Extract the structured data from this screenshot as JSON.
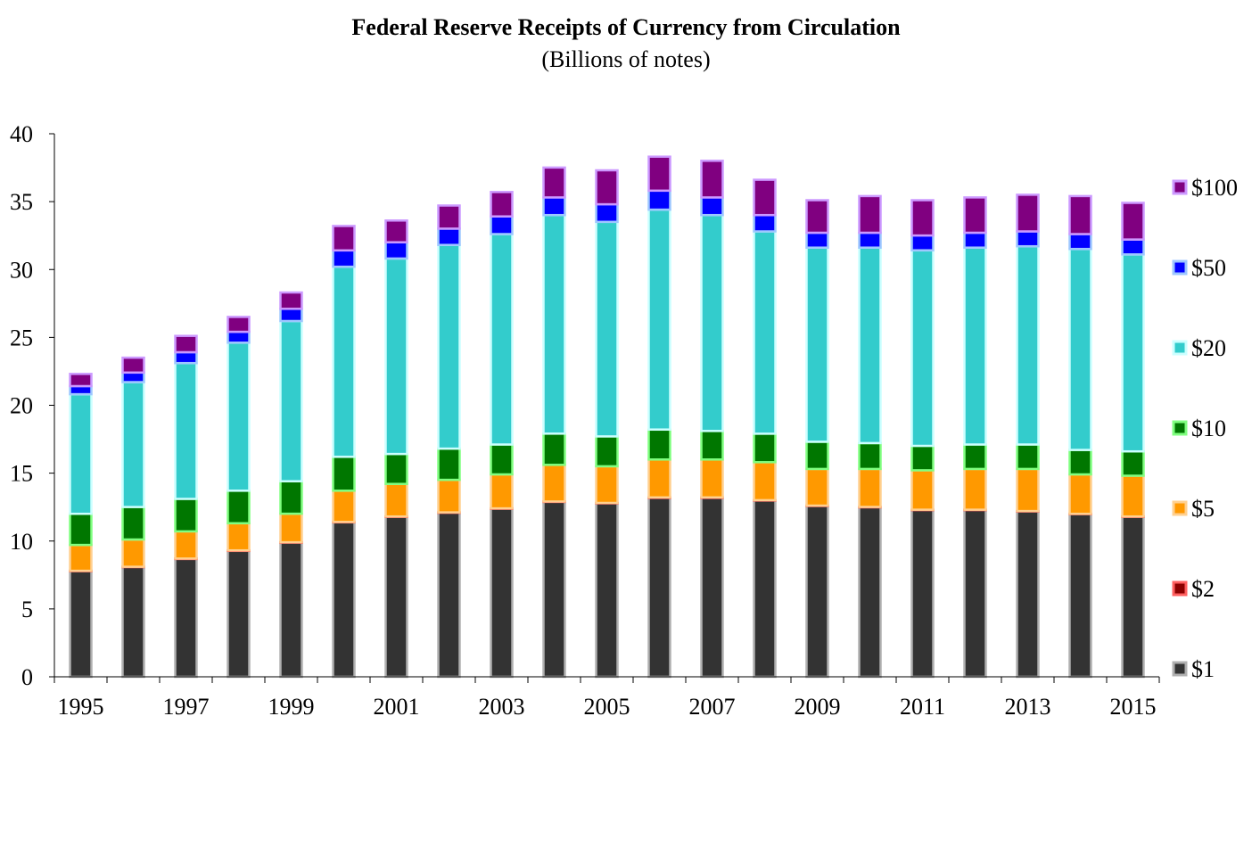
{
  "chart_data": {
    "type": "bar",
    "stacked": true,
    "title": "Federal Reserve Receipts of Currency from Circulation",
    "subtitle": "(Billions of notes)",
    "xlabel": "",
    "ylabel": "",
    "ylim": [
      0,
      40
    ],
    "yticks": [
      "0",
      "5",
      "10",
      "15",
      "20",
      "25",
      "30",
      "35",
      "40"
    ],
    "categories": [
      "1995",
      "1996",
      "1997",
      "1998",
      "1999",
      "2000",
      "2001",
      "2002",
      "2003",
      "2004",
      "2005",
      "2006",
      "2007",
      "2008",
      "2009",
      "2010",
      "2011",
      "2012",
      "2013",
      "2014",
      "2015"
    ],
    "xtick_labels": [
      "1995",
      "",
      "1997",
      "",
      "1999",
      "",
      "2001",
      "",
      "2003",
      "",
      "2005",
      "",
      "2007",
      "",
      "2009",
      "",
      "2011",
      "",
      "2013",
      "",
      "2015"
    ],
    "grid": false,
    "legend_position": "right",
    "series": [
      {
        "name": "$1",
        "color": "#333333",
        "border": "#b0b0b0",
        "values": [
          7.8,
          8.1,
          8.7,
          9.3,
          9.9,
          11.4,
          11.8,
          12.1,
          12.4,
          12.9,
          12.8,
          13.2,
          13.2,
          13.0,
          12.6,
          12.5,
          12.3,
          12.3,
          12.2,
          12.0,
          11.8
        ]
      },
      {
        "name": "$2",
        "color": "#8b0000",
        "border": "#ff6060",
        "values": [
          0.01,
          0.01,
          0.01,
          0.01,
          0.01,
          0.01,
          0.01,
          0.01,
          0.01,
          0.01,
          0.01,
          0.01,
          0.01,
          0.01,
          0.01,
          0.01,
          0.01,
          0.01,
          0.01,
          0.01,
          0.01
        ]
      },
      {
        "name": "$5",
        "color": "#ff9900",
        "border": "#ffd090",
        "values": [
          1.9,
          2.0,
          2.0,
          2.0,
          2.1,
          2.3,
          2.4,
          2.4,
          2.5,
          2.7,
          2.7,
          2.8,
          2.8,
          2.8,
          2.7,
          2.8,
          2.9,
          3.0,
          3.1,
          2.9,
          3.0
        ]
      },
      {
        "name": "$10",
        "color": "#007700",
        "border": "#80ff80",
        "values": [
          2.3,
          2.4,
          2.4,
          2.4,
          2.4,
          2.5,
          2.2,
          2.3,
          2.2,
          2.3,
          2.2,
          2.2,
          2.1,
          2.1,
          2.0,
          1.9,
          1.8,
          1.8,
          1.8,
          1.8,
          1.8
        ]
      },
      {
        "name": "$20",
        "color": "#33cccc",
        "border": "#ccffff",
        "values": [
          8.8,
          9.2,
          10.0,
          10.9,
          11.8,
          14.0,
          14.4,
          15.0,
          15.5,
          16.1,
          15.8,
          16.2,
          15.9,
          14.9,
          14.3,
          14.4,
          14.4,
          14.5,
          14.6,
          14.8,
          14.5
        ]
      },
      {
        "name": "$50",
        "color": "#0000ff",
        "border": "#9ec7ff",
        "values": [
          0.6,
          0.7,
          0.8,
          0.8,
          0.9,
          1.2,
          1.2,
          1.2,
          1.3,
          1.3,
          1.3,
          1.4,
          1.3,
          1.2,
          1.1,
          1.1,
          1.1,
          1.1,
          1.1,
          1.1,
          1.1
        ]
      },
      {
        "name": "$100",
        "color": "#800080",
        "border": "#cc99ff",
        "values": [
          0.9,
          1.1,
          1.2,
          1.1,
          1.2,
          1.8,
          1.6,
          1.7,
          1.8,
          2.2,
          2.5,
          2.5,
          2.7,
          2.6,
          2.4,
          2.7,
          2.6,
          2.6,
          2.7,
          2.8,
          2.7
        ]
      }
    ]
  }
}
